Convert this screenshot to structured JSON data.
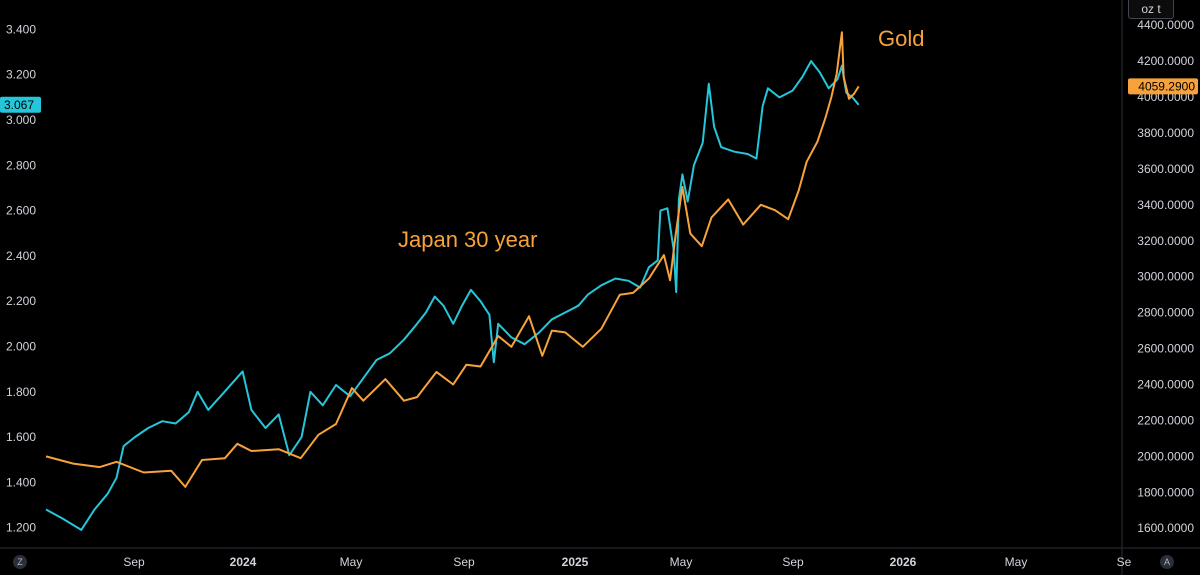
{
  "chart_data": {
    "type": "line",
    "annotations": [
      "Gold",
      "Japan 30 year"
    ],
    "grid": false,
    "x_ticks": [
      "Sep",
      "2024",
      "May",
      "Sep",
      "2025",
      "May",
      "Sep",
      "2026",
      "May",
      "Se"
    ],
    "x_range": [
      "2023-05-01",
      "2026-09-05"
    ],
    "left_axis": {
      "ticks": [
        "1.200",
        "1.400",
        "1.600",
        "1.800",
        "2.000",
        "2.200",
        "2.400",
        "2.600",
        "2.800",
        "3.000",
        "3.200",
        "3.400"
      ],
      "range": [
        1.11,
        3.53
      ],
      "last_value_label": "3.067"
    },
    "right_axis": {
      "unit": "oz t",
      "ticks": [
        "1600.0000",
        "1800.0000",
        "2000.0000",
        "2200.0000",
        "2400.0000",
        "2600.0000",
        "2800.0000",
        "3000.0000",
        "3200.0000",
        "3400.0000",
        "3600.0000",
        "3800.0000",
        "4000.0000",
        "4200.0000",
        "4400.0000"
      ],
      "range": [
        1490,
        4540
      ],
      "last_value_label": "4059.2900"
    },
    "series": [
      {
        "axis": "left",
        "color": "#26c6da",
        "points": [
          [
            "2023-05-01",
            1.28
          ],
          [
            "2023-05-20",
            1.24
          ],
          [
            "2023-06-10",
            1.19
          ],
          [
            "2023-06-25",
            1.28
          ],
          [
            "2023-07-10",
            1.35
          ],
          [
            "2023-07-20",
            1.42
          ],
          [
            "2023-07-28",
            1.56
          ],
          [
            "2023-08-10",
            1.6
          ],
          [
            "2023-08-25",
            1.64
          ],
          [
            "2023-09-10",
            1.67
          ],
          [
            "2023-09-25",
            1.66
          ],
          [
            "2023-10-10",
            1.71
          ],
          [
            "2023-10-20",
            1.8
          ],
          [
            "2023-11-01",
            1.72
          ],
          [
            "2023-11-15",
            1.78
          ],
          [
            "2023-12-01",
            1.85
          ],
          [
            "2023-12-10",
            1.89
          ],
          [
            "2023-12-20",
            1.72
          ],
          [
            "2024-01-05",
            1.64
          ],
          [
            "2024-01-20",
            1.7
          ],
          [
            "2024-02-01",
            1.52
          ],
          [
            "2024-02-15",
            1.6
          ],
          [
            "2024-02-25",
            1.8
          ],
          [
            "2024-03-10",
            1.74
          ],
          [
            "2024-03-25",
            1.83
          ],
          [
            "2024-04-10",
            1.78
          ],
          [
            "2024-04-25",
            1.86
          ],
          [
            "2024-05-10",
            1.94
          ],
          [
            "2024-05-25",
            1.97
          ],
          [
            "2024-06-10",
            2.03
          ],
          [
            "2024-06-25",
            2.1
          ],
          [
            "2024-07-05",
            2.15
          ],
          [
            "2024-07-15",
            2.22
          ],
          [
            "2024-07-25",
            2.18
          ],
          [
            "2024-08-05",
            2.1
          ],
          [
            "2024-08-15",
            2.18
          ],
          [
            "2024-08-25",
            2.25
          ],
          [
            "2024-09-05",
            2.2
          ],
          [
            "2024-09-15",
            2.14
          ],
          [
            "2024-09-20",
            1.93
          ],
          [
            "2024-09-25",
            2.1
          ],
          [
            "2024-10-10",
            2.04
          ],
          [
            "2024-10-25",
            2.01
          ],
          [
            "2024-11-10",
            2.06
          ],
          [
            "2024-11-25",
            2.12
          ],
          [
            "2024-12-10",
            2.15
          ],
          [
            "2024-12-25",
            2.18
          ],
          [
            "2025-01-05",
            2.23
          ],
          [
            "2025-01-20",
            2.27
          ],
          [
            "2025-02-05",
            2.3
          ],
          [
            "2025-02-20",
            2.29
          ],
          [
            "2025-03-05",
            2.26
          ],
          [
            "2025-03-15",
            2.35
          ],
          [
            "2025-03-25",
            2.38
          ],
          [
            "2025-03-28",
            2.6
          ],
          [
            "2025-04-05",
            2.61
          ],
          [
            "2025-04-12",
            2.43
          ],
          [
            "2025-04-15",
            2.24
          ],
          [
            "2025-04-18",
            2.65
          ],
          [
            "2025-04-22",
            2.76
          ],
          [
            "2025-04-28",
            2.64
          ],
          [
            "2025-05-05",
            2.8
          ],
          [
            "2025-05-15",
            2.9
          ],
          [
            "2025-05-22",
            3.16
          ],
          [
            "2025-05-28",
            2.97
          ],
          [
            "2025-06-05",
            2.88
          ],
          [
            "2025-06-20",
            2.86
          ],
          [
            "2025-07-05",
            2.85
          ],
          [
            "2025-07-15",
            2.83
          ],
          [
            "2025-07-22",
            3.06
          ],
          [
            "2025-07-28",
            3.14
          ],
          [
            "2025-08-10",
            3.1
          ],
          [
            "2025-08-25",
            3.13
          ],
          [
            "2025-09-05",
            3.19
          ],
          [
            "2025-09-15",
            3.26
          ],
          [
            "2025-09-25",
            3.21
          ],
          [
            "2025-10-05",
            3.14
          ],
          [
            "2025-10-15",
            3.18
          ],
          [
            "2025-10-20",
            3.24
          ],
          [
            "2025-10-25",
            3.12
          ],
          [
            "2025-11-01",
            3.1
          ],
          [
            "2025-11-08",
            3.067
          ]
        ]
      },
      {
        "axis": "right",
        "color": "#f7a23b",
        "points": [
          [
            "2023-05-01",
            2000
          ],
          [
            "2023-06-01",
            1960
          ],
          [
            "2023-07-01",
            1940
          ],
          [
            "2023-07-20",
            1970
          ],
          [
            "2023-08-20",
            1910
          ],
          [
            "2023-09-20",
            1920
          ],
          [
            "2023-10-06",
            1830
          ],
          [
            "2023-10-25",
            1980
          ],
          [
            "2023-11-20",
            1990
          ],
          [
            "2023-12-04",
            2070
          ],
          [
            "2023-12-20",
            2030
          ],
          [
            "2024-01-20",
            2040
          ],
          [
            "2024-02-14",
            1990
          ],
          [
            "2024-03-05",
            2120
          ],
          [
            "2024-03-25",
            2180
          ],
          [
            "2024-04-12",
            2380
          ],
          [
            "2024-04-25",
            2310
          ],
          [
            "2024-05-20",
            2430
          ],
          [
            "2024-06-10",
            2310
          ],
          [
            "2024-06-25",
            2330
          ],
          [
            "2024-07-17",
            2470
          ],
          [
            "2024-08-05",
            2400
          ],
          [
            "2024-08-20",
            2510
          ],
          [
            "2024-09-05",
            2500
          ],
          [
            "2024-09-25",
            2670
          ],
          [
            "2024-10-10",
            2610
          ],
          [
            "2024-10-30",
            2780
          ],
          [
            "2024-11-14",
            2560
          ],
          [
            "2024-11-25",
            2700
          ],
          [
            "2024-12-10",
            2690
          ],
          [
            "2024-12-30",
            2610
          ],
          [
            "2025-01-20",
            2710
          ],
          [
            "2025-02-10",
            2900
          ],
          [
            "2025-02-25",
            2910
          ],
          [
            "2025-03-15",
            2990
          ],
          [
            "2025-04-01",
            3120
          ],
          [
            "2025-04-08",
            2980
          ],
          [
            "2025-04-14",
            3220
          ],
          [
            "2025-04-22",
            3500
          ],
          [
            "2025-05-01",
            3240
          ],
          [
            "2025-05-14",
            3170
          ],
          [
            "2025-05-25",
            3330
          ],
          [
            "2025-06-13",
            3430
          ],
          [
            "2025-06-30",
            3290
          ],
          [
            "2025-07-20",
            3400
          ],
          [
            "2025-08-05",
            3370
          ],
          [
            "2025-08-20",
            3320
          ],
          [
            "2025-09-01",
            3480
          ],
          [
            "2025-09-10",
            3640
          ],
          [
            "2025-09-22",
            3750
          ],
          [
            "2025-10-01",
            3880
          ],
          [
            "2025-10-08",
            4000
          ],
          [
            "2025-10-14",
            4130
          ],
          [
            "2025-10-20",
            4360
          ],
          [
            "2025-10-22",
            4110
          ],
          [
            "2025-10-28",
            3990
          ],
          [
            "2025-11-03",
            4020
          ],
          [
            "2025-11-08",
            4059.29
          ]
        ]
      }
    ]
  },
  "ui": {
    "bottom_left_button": "Z",
    "bottom_right_button": "A"
  }
}
